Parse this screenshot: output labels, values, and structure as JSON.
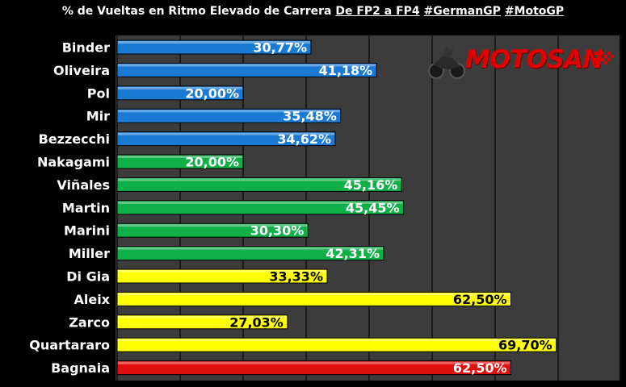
{
  "title": {
    "prefix": "% de Vueltas en Ritmo Elevado de Carrera",
    "underlined": "De FP2 a FP4",
    "tag1": "#GermanGP",
    "tag2": "#MotoGP"
  },
  "logo": {
    "text": "MOTOSAN"
  },
  "colors": {
    "background": "#000000",
    "plot_area": "#3c3c3c",
    "grid": "#111111",
    "blue": "#1a7ad4",
    "green": "#10b048",
    "yellow": "#ffff00",
    "red": "#e01010",
    "label_light": "#ffffff",
    "label_dark": "#000000",
    "logo_red": "#e10000"
  },
  "chart_data": {
    "type": "bar",
    "orientation": "horizontal",
    "categories": [
      "Binder",
      "Oliveira",
      "Pol",
      "Mir",
      "Bezzecchi",
      "Nakagami",
      "Viñales",
      "Martin",
      "Marini",
      "Miller",
      "Di Gia",
      "Aleix",
      "Zarco",
      "Quartararo",
      "Bagnaia"
    ],
    "values": [
      30.77,
      41.18,
      20.0,
      35.48,
      34.62,
      20.0,
      45.16,
      45.45,
      30.3,
      42.31,
      33.33,
      62.5,
      27.03,
      69.7,
      62.5
    ],
    "value_labels": [
      "30,77%",
      "41,18%",
      "20,00%",
      "35,48%",
      "34,62%",
      "20,00%",
      "45,16%",
      "45,45%",
      "30,30%",
      "42,31%",
      "33,33%",
      "62,50%",
      "27,03%",
      "69,70%",
      "62,50%"
    ],
    "bar_colors": [
      "blue",
      "blue",
      "blue",
      "blue",
      "blue",
      "green",
      "green",
      "green",
      "green",
      "green",
      "yellow",
      "yellow",
      "yellow",
      "yellow",
      "red"
    ],
    "xlim": [
      0,
      80
    ],
    "grid": true,
    "x_tick_labels": false,
    "legend": "none"
  }
}
